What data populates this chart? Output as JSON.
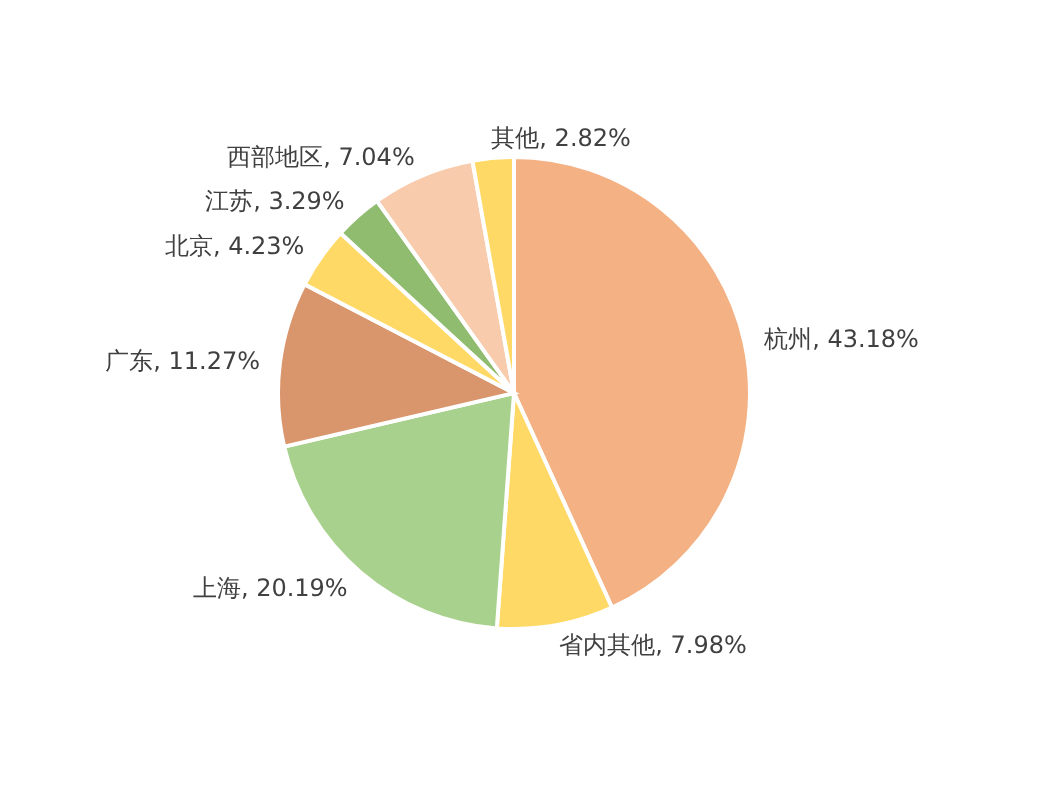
{
  "chart_data": {
    "type": "pie",
    "categories": [
      "杭州",
      "省内其他",
      "上海",
      "广东",
      "北京",
      "江苏",
      "西部地区",
      "其他"
    ],
    "values": [
      43.18,
      7.98,
      20.19,
      11.27,
      4.23,
      3.29,
      7.04,
      2.82
    ],
    "value_labels": [
      "43.18%",
      "7.98%",
      "20.19%",
      "11.27%",
      "4.23%",
      "3.29%",
      "7.04%",
      "2.82%"
    ],
    "colors": [
      "#f4b183",
      "#ffd966",
      "#a9d18e",
      "#d9956b",
      "#ffd966",
      "#8fbc6f",
      "#f8cbad",
      "#ffd966"
    ]
  }
}
